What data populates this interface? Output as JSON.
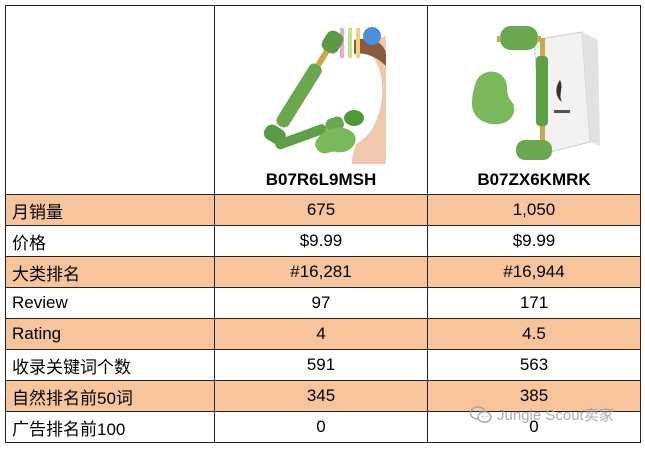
{
  "products": [
    {
      "asin": "B07R6L9MSH",
      "image_icon": "jade-roller-product-image"
    },
    {
      "asin": "B07ZX6KMRK",
      "image_icon": "jade-roller-gift-box-product-image"
    }
  ],
  "rows": [
    {
      "label": "月销量",
      "values": [
        "675",
        "1,050"
      ]
    },
    {
      "label": "价格",
      "values": [
        "$9.99",
        "$9.99"
      ]
    },
    {
      "label": "大类排名",
      "values": [
        "#16,281",
        "#16,944"
      ]
    },
    {
      "label": "Review",
      "values": [
        "97",
        "171"
      ]
    },
    {
      "label": "Rating",
      "values": [
        "4",
        "4.5"
      ]
    },
    {
      "label": "收录关键词个数",
      "values": [
        "591",
        "563"
      ]
    },
    {
      "label": "自然排名前50词",
      "values": [
        "345",
        "385"
      ]
    },
    {
      "label": "广告排名前100",
      "values": [
        "0",
        "0"
      ]
    }
  ],
  "watermark": {
    "text": "Jungle Scout卖家",
    "icon": "wechat-icon"
  },
  "colors": {
    "highlight_row": "#f8c49c",
    "jade": "#6aa84f",
    "border": "#222222"
  }
}
